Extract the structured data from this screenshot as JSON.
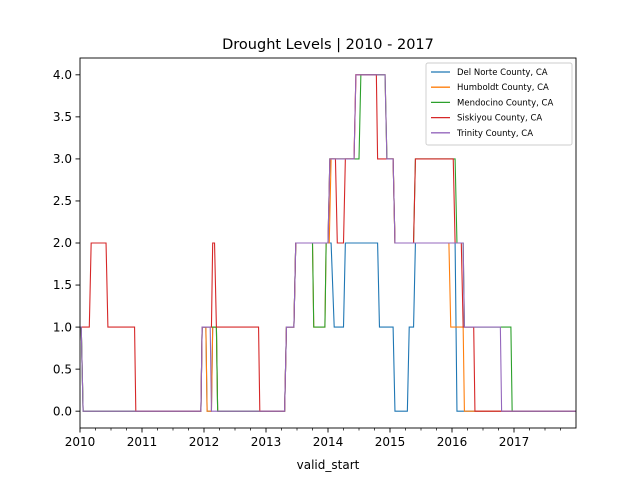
{
  "chart_data": {
    "type": "line",
    "title": "Drought Levels | 2010 - 2017",
    "xlabel": "valid_start",
    "ylabel": "",
    "xlim": [
      2010.0,
      2018.0
    ],
    "ylim": [
      -0.2,
      4.2
    ],
    "x_ticks": [
      2010,
      2011,
      2012,
      2013,
      2014,
      2015,
      2016,
      2017
    ],
    "x_tick_labels": [
      "2010",
      "2011",
      "2012",
      "2013",
      "2014",
      "2015",
      "2016",
      "2017"
    ],
    "y_ticks": [
      0.0,
      0.5,
      1.0,
      1.5,
      2.0,
      2.5,
      3.0,
      3.5,
      4.0
    ],
    "y_tick_labels": [
      "0.0",
      "0.5",
      "1.0",
      "1.5",
      "2.0",
      "2.5",
      "3.0",
      "3.5",
      "4.0"
    ],
    "legend_position": "top-right",
    "grid": false,
    "series": [
      {
        "name": "Del Norte County, CA",
        "color": "#1f77b4",
        "points": [
          [
            2010.0,
            1
          ],
          [
            2010.02,
            1
          ],
          [
            2010.05,
            0
          ],
          [
            2011.95,
            0
          ],
          [
            2011.97,
            1
          ],
          [
            2012.03,
            1
          ],
          [
            2012.05,
            0
          ],
          [
            2012.12,
            0
          ],
          [
            2012.14,
            1
          ],
          [
            2012.2,
            1
          ],
          [
            2012.22,
            0
          ],
          [
            2012.9,
            0
          ],
          [
            2013.3,
            0
          ],
          [
            2013.33,
            1
          ],
          [
            2013.45,
            1
          ],
          [
            2013.48,
            2
          ],
          [
            2014.05,
            2
          ],
          [
            2014.1,
            1
          ],
          [
            2014.25,
            1
          ],
          [
            2014.28,
            2
          ],
          [
            2014.8,
            2
          ],
          [
            2014.83,
            1
          ],
          [
            2015.05,
            1
          ],
          [
            2015.08,
            0
          ],
          [
            2015.28,
            0
          ],
          [
            2015.31,
            1
          ],
          [
            2015.38,
            1
          ],
          [
            2015.41,
            2
          ],
          [
            2016.05,
            2
          ],
          [
            2016.08,
            0
          ],
          [
            2018.0,
            0
          ]
        ]
      },
      {
        "name": "Humboldt County, CA",
        "color": "#ff7f0e",
        "points": [
          [
            2010.0,
            1
          ],
          [
            2010.02,
            1
          ],
          [
            2010.05,
            0
          ],
          [
            2011.95,
            0
          ],
          [
            2011.97,
            1
          ],
          [
            2012.03,
            1
          ],
          [
            2012.05,
            0
          ],
          [
            2012.12,
            0
          ],
          [
            2012.14,
            1
          ],
          [
            2012.2,
            1
          ],
          [
            2012.22,
            0
          ],
          [
            2013.3,
            0
          ],
          [
            2013.33,
            1
          ],
          [
            2013.45,
            1
          ],
          [
            2013.48,
            2
          ],
          [
            2013.75,
            2
          ],
          [
            2013.77,
            1
          ],
          [
            2013.95,
            1
          ],
          [
            2013.97,
            2
          ],
          [
            2014.02,
            2
          ],
          [
            2014.05,
            3
          ],
          [
            2014.42,
            3
          ],
          [
            2014.45,
            4
          ],
          [
            2014.92,
            4
          ],
          [
            2014.95,
            3
          ],
          [
            2015.05,
            3
          ],
          [
            2015.08,
            2
          ],
          [
            2015.95,
            2
          ],
          [
            2015.98,
            1
          ],
          [
            2016.18,
            1
          ],
          [
            2016.2,
            0
          ],
          [
            2018.0,
            0
          ]
        ]
      },
      {
        "name": "Mendocino County, CA",
        "color": "#2ca02c",
        "points": [
          [
            2010.0,
            1
          ],
          [
            2010.02,
            1
          ],
          [
            2010.05,
            0
          ],
          [
            2011.95,
            0
          ],
          [
            2011.97,
            1
          ],
          [
            2012.2,
            1
          ],
          [
            2012.22,
            0
          ],
          [
            2013.3,
            0
          ],
          [
            2013.33,
            1
          ],
          [
            2013.45,
            1
          ],
          [
            2013.48,
            2
          ],
          [
            2013.75,
            2
          ],
          [
            2013.77,
            1
          ],
          [
            2013.95,
            1
          ],
          [
            2013.97,
            2
          ],
          [
            2014.0,
            2
          ],
          [
            2014.03,
            3
          ],
          [
            2014.5,
            3
          ],
          [
            2014.53,
            4
          ],
          [
            2014.92,
            4
          ],
          [
            2014.95,
            3
          ],
          [
            2015.05,
            3
          ],
          [
            2015.08,
            2
          ],
          [
            2015.38,
            2
          ],
          [
            2015.41,
            3
          ],
          [
            2016.05,
            3
          ],
          [
            2016.08,
            2
          ],
          [
            2016.18,
            2
          ],
          [
            2016.2,
            1
          ],
          [
            2016.95,
            1
          ],
          [
            2016.97,
            0
          ],
          [
            2018.0,
            0
          ]
        ]
      },
      {
        "name": "Siskiyou County, CA",
        "color": "#d62728",
        "points": [
          [
            2010.0,
            1
          ],
          [
            2010.15,
            1
          ],
          [
            2010.18,
            2
          ],
          [
            2010.42,
            2
          ],
          [
            2010.45,
            1
          ],
          [
            2010.88,
            1
          ],
          [
            2010.9,
            0
          ],
          [
            2011.95,
            0
          ],
          [
            2011.97,
            1
          ],
          [
            2012.12,
            1
          ],
          [
            2012.14,
            2
          ],
          [
            2012.17,
            2
          ],
          [
            2012.2,
            1
          ],
          [
            2012.88,
            1
          ],
          [
            2012.9,
            0
          ],
          [
            2013.3,
            0
          ],
          [
            2013.33,
            1
          ],
          [
            2013.45,
            1
          ],
          [
            2013.48,
            2
          ],
          [
            2014.0,
            2
          ],
          [
            2014.03,
            3
          ],
          [
            2014.12,
            3
          ],
          [
            2014.15,
            2
          ],
          [
            2014.25,
            2
          ],
          [
            2014.28,
            3
          ],
          [
            2014.42,
            3
          ],
          [
            2014.45,
            4
          ],
          [
            2014.78,
            4
          ],
          [
            2014.8,
            3
          ],
          [
            2015.05,
            3
          ],
          [
            2015.08,
            2
          ],
          [
            2015.38,
            2
          ],
          [
            2015.41,
            3
          ],
          [
            2016.02,
            3
          ],
          [
            2016.05,
            2
          ],
          [
            2016.15,
            2
          ],
          [
            2016.18,
            1
          ],
          [
            2016.35,
            1
          ],
          [
            2016.37,
            0
          ],
          [
            2018.0,
            0
          ]
        ]
      },
      {
        "name": "Trinity County, CA",
        "color": "#9467bd",
        "points": [
          [
            2010.0,
            1
          ],
          [
            2010.02,
            1
          ],
          [
            2010.05,
            0
          ],
          [
            2011.95,
            0
          ],
          [
            2011.97,
            1
          ],
          [
            2012.1,
            1
          ],
          [
            2012.12,
            0
          ],
          [
            2013.3,
            0
          ],
          [
            2013.33,
            1
          ],
          [
            2013.45,
            1
          ],
          [
            2013.48,
            2
          ],
          [
            2014.0,
            2
          ],
          [
            2014.03,
            3
          ],
          [
            2014.42,
            3
          ],
          [
            2014.45,
            4
          ],
          [
            2014.92,
            4
          ],
          [
            2014.95,
            3
          ],
          [
            2015.05,
            3
          ],
          [
            2015.08,
            2
          ],
          [
            2016.18,
            2
          ],
          [
            2016.2,
            1
          ],
          [
            2016.78,
            1
          ],
          [
            2016.8,
            0
          ],
          [
            2018.0,
            0
          ]
        ]
      }
    ]
  }
}
